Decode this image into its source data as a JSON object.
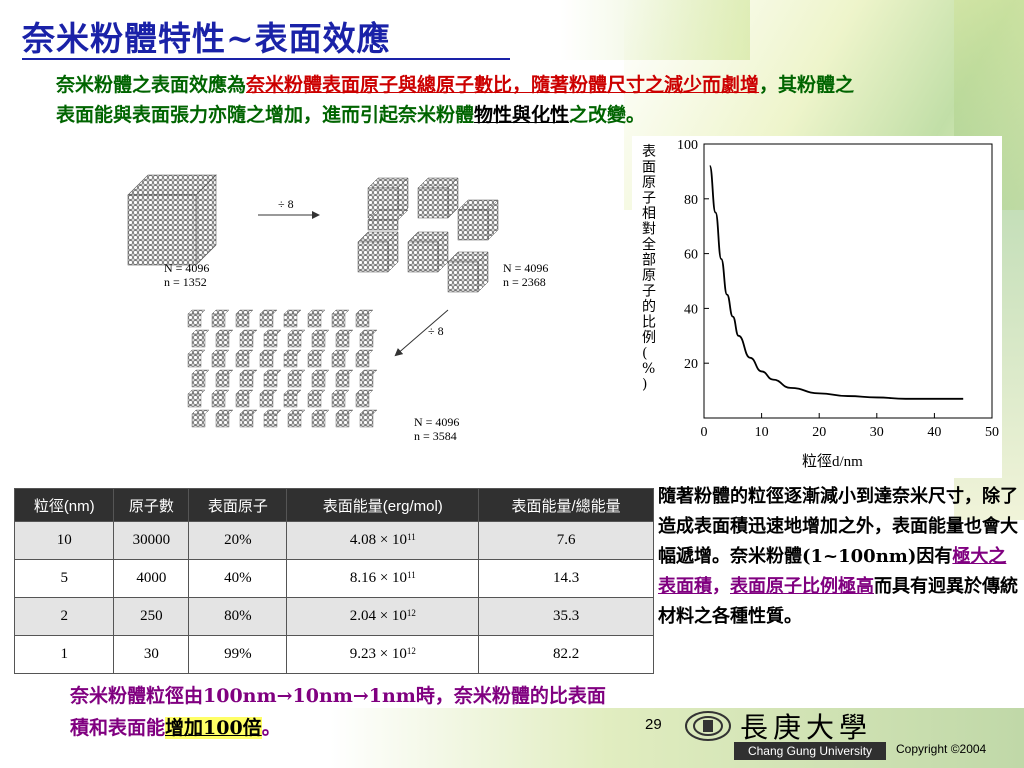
{
  "title": "奈米粉體特性~表面效應",
  "intro": {
    "p1": "奈米粉體之表面效應為",
    "p2": "奈米粉體表面原子與總原子數比，隨著粉體尺寸之減少而劇增",
    "p3": "，其粉體之表面能與表面張力亦隨之增加，進而引起奈米粉體",
    "p4": "物性與化性",
    "p5": "之改變。"
  },
  "diagram": {
    "labels": [
      {
        "n_total": "N = 4096",
        "n_surface": "n = 1352"
      },
      {
        "n_total": "N = 4096",
        "n_surface": "n = 2368"
      },
      {
        "n_total": "N = 4096",
        "n_surface": "n = 3584"
      }
    ],
    "arrow_label": "÷ 8"
  },
  "chart_data": {
    "type": "line",
    "title": "",
    "xlabel": "粒徑d/nm",
    "ylabel": "表面原子相對全部原子的比例(%)",
    "xlim": [
      0,
      50
    ],
    "ylim": [
      0,
      100
    ],
    "xticks": [
      "0",
      "10",
      "20",
      "30",
      "40",
      "50"
    ],
    "yticks": [
      "20",
      "40",
      "60",
      "80",
      "100"
    ],
    "series": [
      {
        "x": [
          1,
          2,
          3,
          4,
          5,
          6,
          8,
          10,
          12,
          15,
          20,
          25,
          30,
          35,
          40,
          45
        ],
        "y": [
          92,
          75,
          58,
          45,
          37,
          30,
          22,
          17,
          14,
          11,
          9,
          8,
          7.5,
          7,
          7,
          7
        ]
      }
    ]
  },
  "table": {
    "headers": [
      "粒徑(nm)",
      "原子數",
      "表面原子",
      "表面能量(erg/mol)",
      "表面能量/總能量"
    ],
    "rows": [
      {
        "size": "10",
        "atoms": "30000",
        "surface": "20%",
        "energy_base": "4.08 × 10",
        "energy_exp": "11",
        "ratio": "7.6"
      },
      {
        "size": "5",
        "atoms": "4000",
        "surface": "40%",
        "energy_base": "8.16 × 10",
        "energy_exp": "11",
        "ratio": "14.3"
      },
      {
        "size": "2",
        "atoms": "250",
        "surface": "80%",
        "energy_base": "2.04 × 10",
        "energy_exp": "12",
        "ratio": "35.3"
      },
      {
        "size": "1",
        "atoms": "30",
        "surface": "99%",
        "energy_base": "9.23 × 10",
        "energy_exp": "12",
        "ratio": "82.2"
      }
    ]
  },
  "right_text": {
    "p1": "隨著粉體的粒徑逐漸減小到達奈米尺寸，除了造成表面積迅速地增加之外，表面能量也會大幅遞增。奈米粉體(1~100nm)因有",
    "p2": "極大之表面積",
    "p3": "，",
    "p4": "表面原子比例極高",
    "p5": "而具有迥異於傳統材料之各種性質。"
  },
  "bottom_text": {
    "p1": "奈米粉體粒徑由100nm→10nm→1nm時，奈米粉體的比表面積和表面能",
    "p2": "增加100倍",
    "p3": "。"
  },
  "footer": {
    "page_number": "29",
    "university_cn": "長庚大學",
    "university_en": "Chang Gung University",
    "copyright": "Copyright ©2004"
  }
}
